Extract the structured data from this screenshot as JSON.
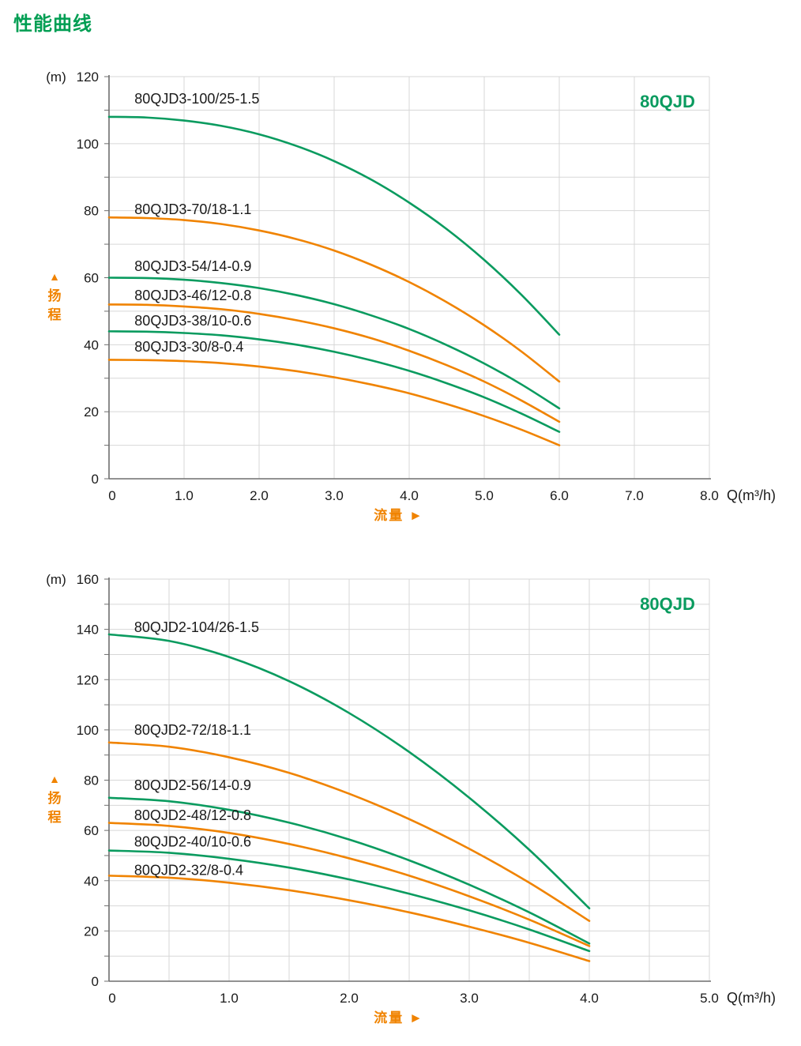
{
  "page": {
    "title": "性能曲线"
  },
  "colors": {
    "green": "#0a9b5f",
    "orange": "#f08300",
    "heading_green": "#009e53",
    "grid": "#d7d7d7",
    "axis": "#6e6e6e",
    "text": "#1a1a1a"
  },
  "chart_data": [
    {
      "type": "line",
      "title": "80QJD",
      "y_unit": "(m)",
      "x_unit": "Q(m³/h)",
      "y_axis_title": "扬程",
      "y_axis_marker": "▲",
      "x_axis_title": "流量",
      "x_axis_marker": "►",
      "xlim": [
        0,
        8
      ],
      "ylim": [
        0,
        120
      ],
      "x_grid_step": 1,
      "y_grid_step": 10,
      "x_tick_step": 1,
      "y_tick_step": 20,
      "x_tick_labels": [
        "0",
        "1.0",
        "2.0",
        "3.0",
        "4.0",
        "5.0",
        "6.0",
        "7.0",
        "8.0"
      ],
      "y_tick_labels": [
        "0",
        "20",
        "40",
        "60",
        "80",
        "100",
        "120"
      ],
      "grid": true,
      "legend_position": "labels-on-curves",
      "series": [
        {
          "name": "80QJD3-100/25-1.5",
          "color": "green",
          "label_pos": [
            0.34,
            112
          ],
          "x": [
            0,
            0.5,
            1,
            1.5,
            2,
            2.5,
            3,
            3.5,
            4,
            4.5,
            5,
            5.5,
            6
          ],
          "y": [
            108,
            107.8,
            106.9,
            105.3,
            102.8,
            99.3,
            94.8,
            89.2,
            82.4,
            74.5,
            65.3,
            54.8,
            43
          ]
        },
        {
          "name": "80QJD3-70/18-1.1",
          "color": "orange",
          "label_pos": [
            0.34,
            79
          ],
          "x": [
            0,
            0.5,
            1,
            1.5,
            2,
            2.5,
            3,
            3.5,
            4,
            4.5,
            5,
            5.5,
            6
          ],
          "y": [
            78,
            77.8,
            77.2,
            76.0,
            74.1,
            71.5,
            68.1,
            63.8,
            58.7,
            52.7,
            45.8,
            37.9,
            29
          ]
        },
        {
          "name": "80QJD3-54/14-0.9",
          "color": "green",
          "label_pos": [
            0.34,
            62
          ],
          "x": [
            0,
            0.5,
            1,
            1.5,
            2,
            2.5,
            3,
            3.5,
            4,
            4.5,
            5,
            5.5,
            6
          ],
          "y": [
            60,
            59.9,
            59.4,
            58.4,
            56.9,
            54.8,
            52.1,
            48.7,
            44.7,
            39.9,
            34.4,
            28.1,
            21
          ]
        },
        {
          "name": "80QJD3-46/12-0.8",
          "color": "orange",
          "label_pos": [
            0.34,
            53.3
          ],
          "x": [
            0,
            0.5,
            1,
            1.5,
            2,
            2.5,
            3,
            3.5,
            4,
            4.5,
            5,
            5.5,
            6
          ],
          "y": [
            52,
            51.9,
            51.4,
            50.6,
            49.2,
            47.3,
            44.9,
            41.9,
            38.2,
            33.9,
            29.0,
            23.3,
            17
          ]
        },
        {
          "name": "80QJD3-38/10-0.6",
          "color": "green",
          "label_pos": [
            0.34,
            45.7
          ],
          "x": [
            0,
            0.5,
            1,
            1.5,
            2,
            2.5,
            3,
            3.5,
            4,
            4.5,
            5,
            5.5,
            6
          ],
          "y": [
            44,
            43.9,
            43.5,
            42.8,
            41.6,
            40.0,
            37.9,
            35.3,
            32.2,
            28.5,
            24.3,
            19.4,
            14
          ]
        },
        {
          "name": "80QJD3-30/8-0.4",
          "color": "orange",
          "label_pos": [
            0.34,
            38
          ],
          "x": [
            0,
            0.5,
            1,
            1.5,
            2,
            2.5,
            3,
            3.5,
            4,
            4.5,
            5,
            5.5,
            6
          ],
          "y": [
            35.5,
            35.4,
            35.1,
            34.5,
            33.5,
            32.1,
            30.3,
            28.1,
            25.5,
            22.3,
            18.7,
            14.6,
            10
          ]
        }
      ]
    },
    {
      "type": "line",
      "title": "80QJD",
      "y_unit": "(m)",
      "x_unit": "Q(m³/h)",
      "y_axis_title": "扬程",
      "y_axis_marker": "▲",
      "x_axis_title": "流量",
      "x_axis_marker": "►",
      "xlim": [
        0,
        5
      ],
      "ylim": [
        0,
        160
      ],
      "x_grid_step": 0.5,
      "y_grid_step": 10,
      "x_tick_step": 1,
      "y_tick_step": 20,
      "x_tick_labels": [
        "0",
        "1.0",
        "2.0",
        "3.0",
        "4.0",
        "5.0"
      ],
      "y_tick_labels": [
        "0",
        "20",
        "40",
        "60",
        "80",
        "100",
        "120",
        "140",
        "160"
      ],
      "grid": true,
      "legend_position": "labels-on-curves",
      "series": [
        {
          "name": "80QJD2-104/26-1.5",
          "color": "green",
          "label_pos": [
            0.21,
            139
          ],
          "x": [
            0,
            0.5,
            1,
            1.5,
            2,
            2.5,
            3,
            3.5,
            4
          ],
          "y": [
            138,
            135.4,
            129.0,
            119.4,
            106.7,
            91.2,
            73.0,
            52.3,
            29
          ]
        },
        {
          "name": "80QJD2-72/18-1.1",
          "color": "orange",
          "label_pos": [
            0.21,
            98
          ],
          "x": [
            0,
            0.5,
            1,
            1.5,
            2,
            2.5,
            3,
            3.5,
            4
          ],
          "y": [
            95,
            93.3,
            89.1,
            82.9,
            74.6,
            64.5,
            52.7,
            39.2,
            24
          ]
        },
        {
          "name": "80QJD2-56/14-0.9",
          "color": "green",
          "label_pos": [
            0.21,
            76
          ],
          "x": [
            0,
            0.5,
            1,
            1.5,
            2,
            2.5,
            3,
            3.5,
            4
          ],
          "y": [
            73,
            71.6,
            68.2,
            63.1,
            56.4,
            48.1,
            38.4,
            27.4,
            15
          ]
        },
        {
          "name": "80QJD2-48/12-0.8",
          "color": "orange",
          "label_pos": [
            0.21,
            64.2
          ],
          "x": [
            0,
            0.5,
            1,
            1.5,
            2,
            2.5,
            3,
            3.5,
            4
          ],
          "y": [
            63,
            61.8,
            59.0,
            54.6,
            48.9,
            42.0,
            33.8,
            24.5,
            14
          ]
        },
        {
          "name": "80QJD2-40/10-0.6",
          "color": "green",
          "label_pos": [
            0.21,
            53.6
          ],
          "x": [
            0,
            0.5,
            1,
            1.5,
            2,
            2.5,
            3,
            3.5,
            4
          ],
          "y": [
            52,
            51.1,
            48.7,
            45.2,
            40.5,
            34.8,
            28.2,
            20.6,
            12
          ]
        },
        {
          "name": "80QJD2-32/8-0.4",
          "color": "orange",
          "label_pos": [
            0.21,
            42.3
          ],
          "x": [
            0,
            0.5,
            1,
            1.5,
            2,
            2.5,
            3,
            3.5,
            4
          ],
          "y": [
            42,
            41.2,
            39.2,
            36.2,
            32.2,
            27.4,
            21.7,
            15.3,
            8
          ]
        }
      ]
    }
  ]
}
